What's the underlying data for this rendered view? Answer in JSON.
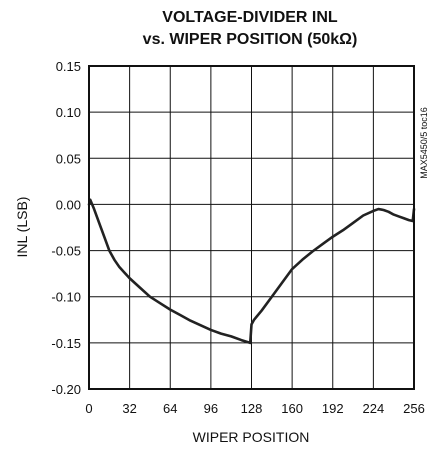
{
  "chart_data": {
    "type": "line",
    "title": "VOLTAGE-DIVIDER INL",
    "subtitle": "vs. WIPER POSITION (50kΩ)",
    "xlabel": "WIPER POSITION",
    "ylabel": "INL (LSB)",
    "figure_id": "MAX5450/5 toc16",
    "xlim": [
      0,
      256
    ],
    "ylim": [
      -0.2,
      0.15
    ],
    "xticks": [
      "0",
      "32",
      "64",
      "96",
      "128",
      "160",
      "192",
      "224",
      "256"
    ],
    "yticks": [
      "0.15",
      "0.10",
      "0.05",
      "0.00",
      "-0.05",
      "-0.10",
      "-0.15",
      "-0.20"
    ],
    "grid": true,
    "series": [
      {
        "color": "#222222",
        "x": [
          0,
          1,
          4,
          8,
          12,
          16,
          20,
          24,
          28,
          32,
          40,
          48,
          56,
          64,
          72,
          80,
          88,
          96,
          104,
          112,
          120,
          127,
          128,
          130,
          136,
          144,
          152,
          160,
          168,
          176,
          184,
          192,
          200,
          208,
          216,
          224,
          228,
          232,
          236,
          240,
          244,
          248,
          252,
          255,
          256
        ],
        "y": [
          0.0,
          0.005,
          -0.005,
          -0.02,
          -0.035,
          -0.05,
          -0.06,
          -0.068,
          -0.074,
          -0.08,
          -0.09,
          -0.1,
          -0.107,
          -0.114,
          -0.12,
          -0.126,
          -0.131,
          -0.136,
          -0.14,
          -0.143,
          -0.147,
          -0.15,
          -0.13,
          -0.125,
          -0.115,
          -0.1,
          -0.085,
          -0.07,
          -0.06,
          -0.051,
          -0.043,
          -0.035,
          -0.028,
          -0.02,
          -0.012,
          -0.007,
          -0.005,
          -0.006,
          -0.008,
          -0.011,
          -0.013,
          -0.015,
          -0.017,
          -0.018,
          -0.005
        ]
      }
    ]
  }
}
